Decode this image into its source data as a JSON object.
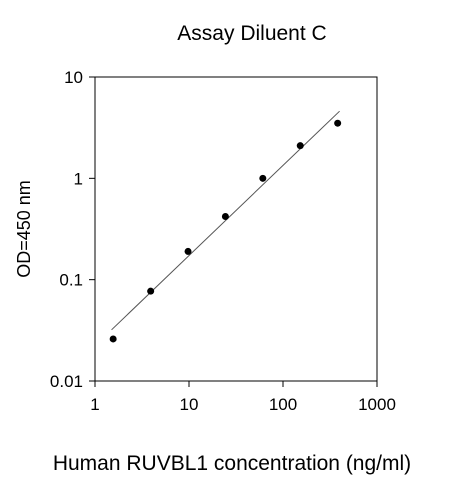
{
  "chart_data": {
    "type": "scatter",
    "title": "Assay Diluent C",
    "xlabel": "Human RUVBL1 concentration (ng/ml)",
    "ylabel": "OD=450 nm",
    "xscale": "log",
    "yscale": "log",
    "xlim": [
      1,
      1000
    ],
    "ylim": [
      0.01,
      10
    ],
    "xticks": [
      "1",
      "10",
      "100",
      "1000"
    ],
    "yticks": [
      "0.01",
      "0.1",
      "1",
      "10"
    ],
    "grid": false,
    "legend": "none",
    "series": [
      {
        "x": [
          1.56,
          3.91,
          9.77,
          24.4,
          61.0,
          152.6,
          381.5
        ],
        "y": [
          0.026,
          0.077,
          0.19,
          0.42,
          1.0,
          2.1,
          3.5
        ]
      }
    ],
    "fit_line": {
      "x": [
        1.5,
        400
      ],
      "y": [
        0.032,
        4.6
      ]
    },
    "colors": {
      "points": "#000000",
      "fit_line": "#555555",
      "axes": "#000000"
    }
  }
}
